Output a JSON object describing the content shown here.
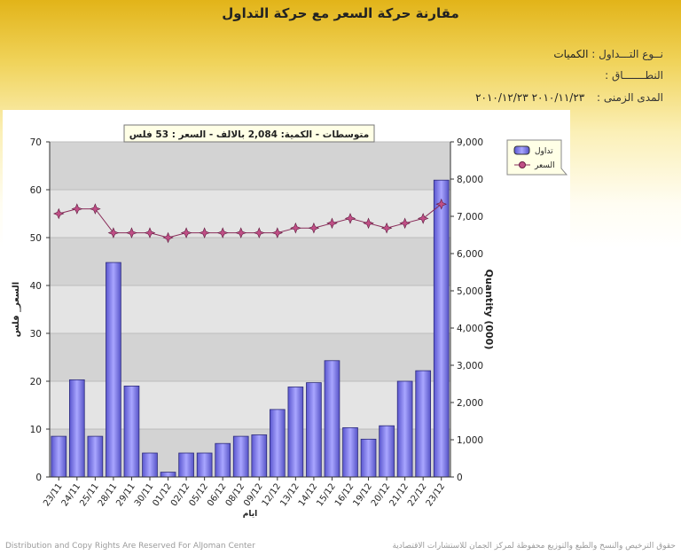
{
  "page": {
    "title": "مقارنة حركة السعر مع حركة التداول",
    "trade_type_label": "نــوع التـــداول :",
    "trade_type_value": "الكميات",
    "scope_label": "النطـــــــاق :",
    "scope_value": "",
    "period_label": "المدى الزمنى :",
    "period_value": "٢٠١٠/١١/٢٣ ٢٠١٠/١٢/٢٣",
    "footer_left": "Distribution and Copy Rights Are Reserved For AlJoman Center",
    "footer_right": "حقوق الترخيص والنسخ والطبع والتوزيع محفوظة لمركز الجمان للاستشارات الاقتصادية"
  },
  "chart_data": {
    "type": "bar",
    "title": "متوسطات - الكمية: 2,084 بالالف   - السعر : 53 فلس",
    "xlabel": "ايام",
    "ylabel": "السعر_ فلس",
    "y2label": "Quantity (000)",
    "ylim": [
      0,
      70
    ],
    "y2lim": [
      0,
      9000
    ],
    "yticks": [
      "0",
      "10",
      "20",
      "30",
      "40",
      "50",
      "60",
      "70"
    ],
    "y2ticks": [
      "0",
      "1,000",
      "2,000",
      "3,000",
      "4,000",
      "5,000",
      "6,000",
      "7,000",
      "8,000",
      "9,000"
    ],
    "grid": true,
    "legend_position": "top-right",
    "categories": [
      "23/11",
      "24/11",
      "25/11",
      "28/11",
      "29/11",
      "30/11",
      "01/12",
      "02/12",
      "05/12",
      "06/12",
      "08/12",
      "09/12",
      "12/12",
      "13/12",
      "14/12",
      "15/12",
      "16/12",
      "19/12",
      "20/12",
      "21/12",
      "22/12",
      "23/12"
    ],
    "series": [
      {
        "name": "تداول",
        "kind": "bar",
        "axis": "left",
        "color": "#7b78e8",
        "values": [
          8.5,
          20.3,
          8.5,
          44.8,
          19.0,
          5.0,
          1.0,
          5.0,
          5.0,
          7.0,
          8.5,
          8.8,
          14.1,
          18.8,
          19.7,
          24.3,
          10.3,
          7.9,
          10.7,
          20.0,
          22.2,
          62.0
        ]
      },
      {
        "name": "السعر",
        "kind": "line",
        "axis": "left",
        "color": "#8a2d5a",
        "values": [
          55.0,
          56.0,
          56.0,
          51.0,
          51.0,
          51.0,
          50.0,
          51.0,
          51.0,
          51.0,
          51.0,
          51.0,
          51.0,
          52.0,
          52.0,
          53.0,
          54.0,
          53.0,
          52.0,
          53.0,
          54.0,
          57.0
        ]
      }
    ]
  }
}
